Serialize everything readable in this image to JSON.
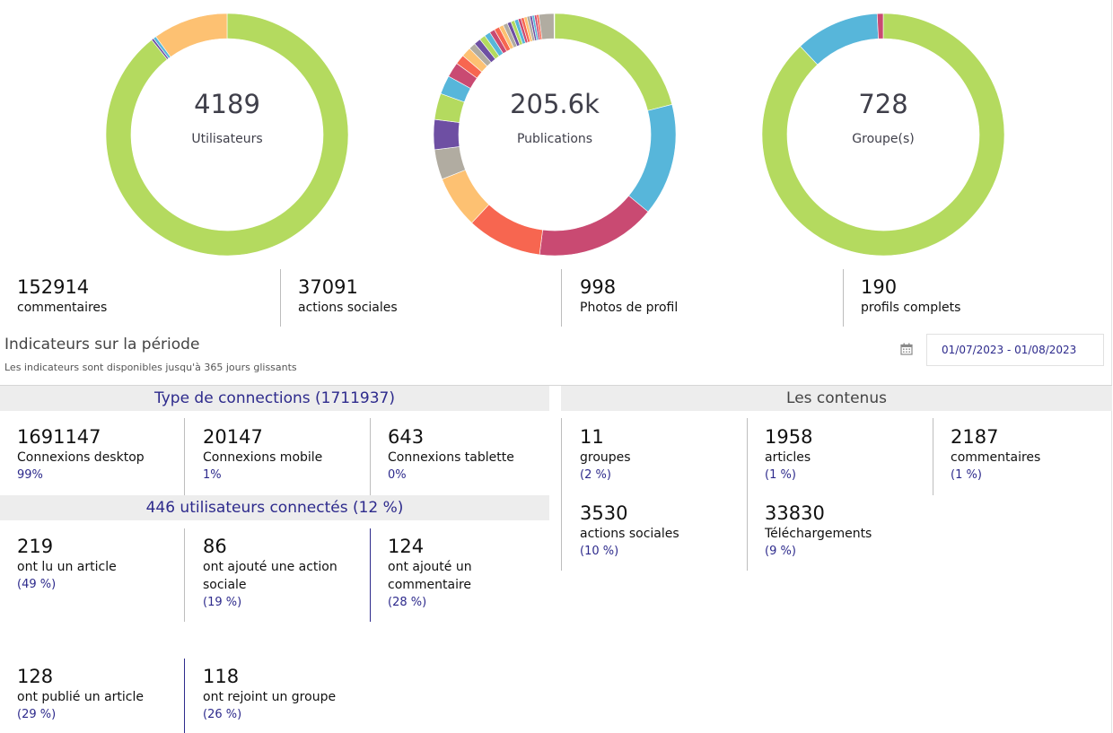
{
  "colors": {
    "green": "#b4da5f",
    "blue": "#57b6da",
    "magenta": "#c94a72",
    "red": "#f76650",
    "orange": "#fdc172",
    "grey": "#b1aca1",
    "purple": "#6e4fa3",
    "accent": "#2d2a8c"
  },
  "donuts": [
    {
      "value": "4189",
      "label": "Utilisateurs",
      "segments": [
        {
          "color": "#b4da5f",
          "fraction": 0.893
        },
        {
          "color": "#6e4fa3",
          "fraction": 0.003
        },
        {
          "color": "#57b6da",
          "fraction": 0.004
        },
        {
          "color": "#fdc172",
          "fraction": 0.1
        }
      ]
    },
    {
      "value": "205.6k",
      "label": "Publications",
      "segments": [
        {
          "color": "#b4da5f",
          "fraction": 0.21
        },
        {
          "color": "#57b6da",
          "fraction": 0.15
        },
        {
          "color": "#c94a72",
          "fraction": 0.16
        },
        {
          "color": "#f76650",
          "fraction": 0.1
        },
        {
          "color": "#fdc172",
          "fraction": 0.07
        },
        {
          "color": "#b1aca1",
          "fraction": 0.04
        },
        {
          "color": "#6e4fa3",
          "fraction": 0.04
        },
        {
          "color": "#b4da5f",
          "fraction": 0.035
        },
        {
          "color": "#57b6da",
          "fraction": 0.025
        },
        {
          "color": "#c94a72",
          "fraction": 0.02
        },
        {
          "color": "#f76650",
          "fraction": 0.013
        },
        {
          "color": "#fdc172",
          "fraction": 0.013
        },
        {
          "color": "#b1aca1",
          "fraction": 0.009
        },
        {
          "color": "#6e4fa3",
          "fraction": 0.009
        },
        {
          "color": "#b4da5f",
          "fraction": 0.008
        },
        {
          "color": "#57b6da",
          "fraction": 0.008
        },
        {
          "color": "#c94a72",
          "fraction": 0.007
        },
        {
          "color": "#f76650",
          "fraction": 0.007
        },
        {
          "color": "#fdc172",
          "fraction": 0.006
        },
        {
          "color": "#b1aca1",
          "fraction": 0.006
        },
        {
          "color": "#6e4fa3",
          "fraction": 0.005
        },
        {
          "color": "#b4da5f",
          "fraction": 0.005
        },
        {
          "color": "#57b6da",
          "fraction": 0.005
        },
        {
          "color": "#c94a72",
          "fraction": 0.004
        },
        {
          "color": "#f76650",
          "fraction": 0.004
        },
        {
          "color": "#fdc172",
          "fraction": 0.004
        },
        {
          "color": "#b1aca1",
          "fraction": 0.004
        },
        {
          "color": "#6e4fa3",
          "fraction": 0.003
        },
        {
          "color": "#57b6da",
          "fraction": 0.003
        },
        {
          "color": "#c94a72",
          "fraction": 0.003
        },
        {
          "color": "#f76650",
          "fraction": 0.003
        },
        {
          "color": "#b1aca1",
          "fraction": 0.02
        }
      ]
    },
    {
      "value": "728",
      "label": "Groupe(s)",
      "segments": [
        {
          "color": "#b4da5f",
          "fraction": 0.88
        },
        {
          "color": "#57b6da",
          "fraction": 0.112
        },
        {
          "color": "#c94a72",
          "fraction": 0.008
        }
      ]
    }
  ],
  "summary": [
    {
      "value": "152914",
      "label": "commentaires"
    },
    {
      "value": "37091",
      "label": "actions sociales"
    },
    {
      "value": "998",
      "label": "Photos de profil"
    },
    {
      "value": "190",
      "label": "profils complets"
    }
  ],
  "period": {
    "title": "Indicateurs sur la période",
    "subtitle": "Les indicateurs sont disponibles jusqu'à 365 jours glissants",
    "date_range": "01/07/2023 - 01/08/2023",
    "calendar_icon": "calendar-icon"
  },
  "connections": {
    "title": "Type de connections (1711937)",
    "items": [
      {
        "value": "1691147",
        "label": "Connexions desktop",
        "pct": "99%"
      },
      {
        "value": "20147",
        "label": "Connexions mobile",
        "pct": "1%"
      },
      {
        "value": "643",
        "label": "Connexions tablette",
        "pct": "0%"
      }
    ]
  },
  "connected_users": {
    "title": "446 utilisateurs connectés (12 %)",
    "items": [
      {
        "value": "219",
        "label": "ont lu un article",
        "pct": "(49 %)"
      },
      {
        "value": "86",
        "label": "ont ajouté une action sociale",
        "pct": "(19 %)"
      },
      {
        "value": "124",
        "label": "ont ajouté un commentaire",
        "pct": "(28 %)"
      },
      {
        "value": "128",
        "label": "ont publié un article",
        "pct": "(29 %)"
      },
      {
        "value": "118",
        "label": "ont rejoint un groupe",
        "pct": "(26 %)"
      }
    ]
  },
  "contents": {
    "title": "Les contenus",
    "items": [
      {
        "value": "11",
        "label": "groupes",
        "pct": "(2 %)"
      },
      {
        "value": "1958",
        "label": "articles",
        "pct": "(1 %)"
      },
      {
        "value": "2187",
        "label": "commentaires",
        "pct": "(1 %)"
      },
      {
        "value": "3530",
        "label": "actions sociales",
        "pct": "(10 %)"
      },
      {
        "value": "33830",
        "label": "Téléchargements",
        "pct": "(9 %)"
      }
    ]
  }
}
